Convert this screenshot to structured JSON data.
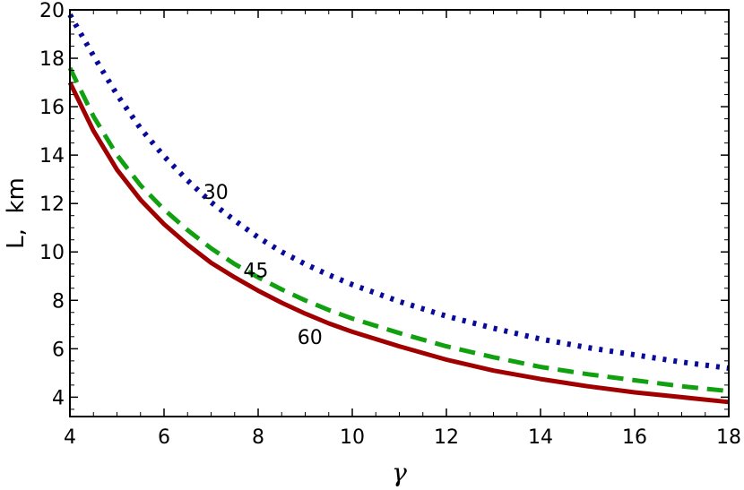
{
  "chart_data": {
    "type": "line",
    "xlabel": "γ",
    "ylabel": "L,  km",
    "xlim": [
      4,
      18
    ],
    "ylim": [
      3.2,
      20
    ],
    "xticks": [
      4,
      6,
      8,
      10,
      12,
      14,
      16,
      18
    ],
    "yticks": [
      4,
      6,
      8,
      10,
      12,
      14,
      16,
      18,
      20
    ],
    "grid": false,
    "series": [
      {
        "name": "30",
        "color": "#0a0a9a",
        "dash": "dotted",
        "x": [
          4,
          4.5,
          5,
          5.5,
          6,
          6.5,
          7,
          7.5,
          8,
          8.5,
          9,
          9.5,
          10,
          11,
          12,
          13,
          14,
          15,
          16,
          17,
          18
        ],
        "y": [
          19.8,
          18.1,
          16.5,
          15.1,
          13.95,
          12.95,
          12.05,
          11.3,
          10.6,
          10.0,
          9.5,
          9.05,
          8.65,
          7.95,
          7.35,
          6.85,
          6.4,
          6.05,
          5.75,
          5.45,
          5.2
        ]
      },
      {
        "name": "45",
        "color": "#10a010",
        "dash": "dashed",
        "x": [
          4,
          4.5,
          5,
          5.5,
          6,
          6.5,
          7,
          7.5,
          8,
          8.5,
          9,
          9.5,
          10,
          11,
          12,
          13,
          14,
          15,
          16,
          17,
          18
        ],
        "y": [
          17.6,
          15.6,
          14.0,
          12.75,
          11.75,
          10.9,
          10.15,
          9.5,
          8.95,
          8.45,
          8.0,
          7.6,
          7.25,
          6.65,
          6.1,
          5.65,
          5.25,
          4.95,
          4.7,
          4.45,
          4.25
        ]
      },
      {
        "name": "60",
        "color": "#a00000",
        "dash": "solid",
        "x": [
          4,
          4.5,
          5,
          5.5,
          6,
          6.5,
          7,
          7.5,
          8,
          8.5,
          9,
          9.5,
          10,
          11,
          12,
          13,
          14,
          15,
          16,
          17,
          18
        ],
        "y": [
          17.0,
          15.0,
          13.4,
          12.15,
          11.15,
          10.3,
          9.55,
          8.95,
          8.4,
          7.9,
          7.45,
          7.05,
          6.7,
          6.1,
          5.55,
          5.1,
          4.75,
          4.45,
          4.2,
          4.0,
          3.8
        ]
      }
    ],
    "annotations": [
      {
        "text": "30",
        "x": 7.1,
        "y": 12.2
      },
      {
        "text": "45",
        "x": 7.95,
        "y": 8.95
      },
      {
        "text": "60",
        "x": 9.1,
        "y": 6.2
      }
    ]
  }
}
